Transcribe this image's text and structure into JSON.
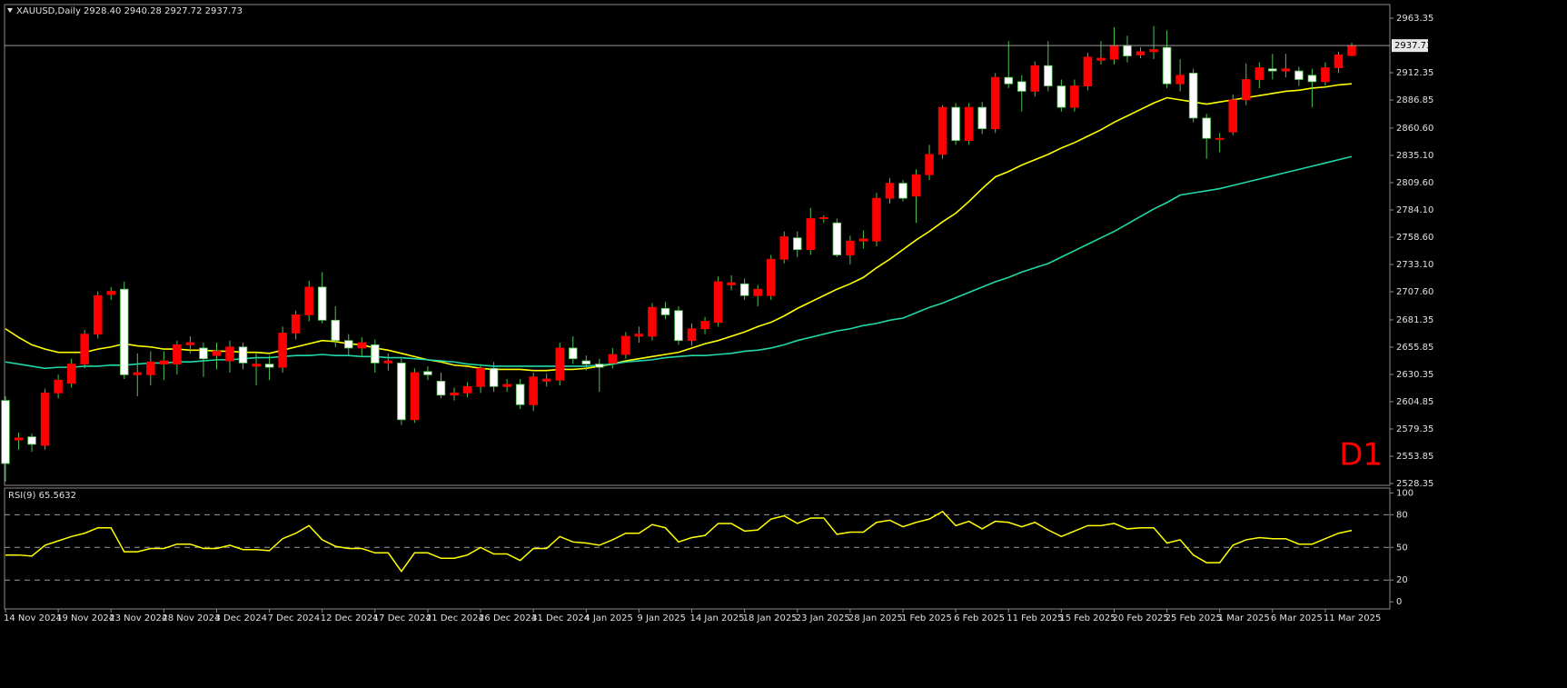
{
  "chart_data": [
    {
      "type": "candlestick",
      "title": "XAUUSD,Daily  2928.40 2940.28 2927.72 2937.73",
      "annotation": "D1",
      "categories": [
        "14 Nov 2024",
        null,
        null,
        null,
        "19 Nov 2024",
        null,
        null,
        null,
        "23 Nov 2024",
        null,
        null,
        null,
        "28 Nov 2024",
        null,
        null,
        null,
        "3 Dec 2024",
        null,
        null,
        null,
        "7 Dec 2024",
        null,
        null,
        null,
        "12 Dec 2024",
        null,
        null,
        null,
        "17 Dec 2024",
        null,
        null,
        null,
        "21 Dec 2024",
        null,
        null,
        null,
        "26 Dec 2024",
        null,
        null,
        null,
        "31 Dec 2024",
        null,
        null,
        null,
        "4 Jan 2025",
        null,
        null,
        null,
        "9 Jan 2025",
        null,
        null,
        null,
        "14 Jan 2025",
        null,
        null,
        null,
        "18 Jan 2025",
        null,
        null,
        null,
        "23 Jan 2025",
        null,
        null,
        null,
        "28 Jan 2025",
        null,
        null,
        null,
        "1 Feb 2025",
        null,
        null,
        null,
        "6 Feb 2025",
        null,
        null,
        null,
        "11 Feb 2025",
        null,
        null,
        null,
        "15 Feb 2025",
        null,
        null,
        null,
        "20 Feb 2025",
        null,
        null,
        null,
        "25 Feb 2025",
        null,
        null,
        null,
        "1 Mar 2025",
        null,
        null,
        null,
        "6 Mar 2025",
        null,
        null,
        null,
        "11 Mar 2025",
        null,
        null
      ],
      "open": [
        2606,
        2569,
        2572,
        2564,
        2613,
        2622,
        2640,
        2668,
        2705,
        2710,
        2630,
        2630,
        2640,
        2640,
        2658,
        2655,
        2648,
        2643,
        2656,
        2638,
        2640,
        2637,
        2669,
        2686,
        2712,
        2681,
        2662,
        2655,
        2658,
        2641,
        2641,
        2588,
        2633,
        2624,
        2611,
        2613,
        2619,
        2636,
        2619,
        2621,
        2602,
        2624,
        2625,
        2655,
        2643,
        2640,
        2641,
        2649,
        2666,
        2666,
        2692,
        2690,
        2662,
        2673,
        2679,
        2714,
        2715,
        2704,
        2704,
        2738,
        2758,
        2747,
        2776,
        2772,
        2742,
        2755,
        2755,
        2795,
        2809,
        2797,
        2817,
        2836,
        2880,
        2849,
        2880,
        2860,
        2908,
        2904,
        2895,
        2919,
        2900,
        2880,
        2900,
        2924,
        2925,
        2938,
        2929,
        2932,
        2936,
        2902,
        2912,
        2870,
        2850,
        2857,
        2887,
        2906,
        2916,
        2914,
        2914,
        2910,
        2904,
        2917,
        2928.4
      ],
      "high": [
        2610,
        2576,
        2575,
        2617,
        2630,
        2645,
        2672,
        2708,
        2712,
        2717,
        2650,
        2652,
        2652,
        2662,
        2666,
        2660,
        2660,
        2662,
        2660,
        2650,
        2648,
        2675,
        2690,
        2718,
        2726,
        2694,
        2668,
        2665,
        2663,
        2650,
        2645,
        2636,
        2638,
        2632,
        2618,
        2623,
        2640,
        2642,
        2626,
        2626,
        2632,
        2631,
        2660,
        2666,
        2648,
        2645,
        2655,
        2670,
        2675,
        2697,
        2698,
        2694,
        2678,
        2684,
        2722,
        2723,
        2720,
        2714,
        2742,
        2764,
        2764,
        2786,
        2779,
        2776,
        2760,
        2765,
        2800,
        2814,
        2812,
        2822,
        2845,
        2882,
        2884,
        2884,
        2885,
        2912,
        2942,
        2910,
        2923,
        2942,
        2906,
        2906,
        2931,
        2942,
        2955,
        2947,
        2936,
        2956,
        2952,
        2925,
        2916,
        2874,
        2856,
        2892,
        2921,
        2922,
        2930,
        2930,
        2918,
        2916,
        2922,
        2932,
        2940.28
      ],
      "low": [
        2530,
        2560,
        2558,
        2560,
        2608,
        2618,
        2636,
        2664,
        2700,
        2626,
        2610,
        2620,
        2625,
        2630,
        2650,
        2628,
        2635,
        2632,
        2635,
        2620,
        2625,
        2632,
        2663,
        2680,
        2678,
        2656,
        2648,
        2648,
        2632,
        2634,
        2583,
        2585,
        2625,
        2608,
        2606,
        2609,
        2613,
        2614,
        2614,
        2598,
        2596,
        2619,
        2620,
        2640,
        2634,
        2614,
        2636,
        2645,
        2660,
        2662,
        2682,
        2658,
        2657,
        2668,
        2675,
        2709,
        2700,
        2694,
        2700,
        2734,
        2740,
        2742,
        2772,
        2740,
        2733,
        2748,
        2750,
        2790,
        2792,
        2772,
        2812,
        2832,
        2845,
        2845,
        2855,
        2856,
        2898,
        2876,
        2890,
        2895,
        2876,
        2876,
        2896,
        2920,
        2920,
        2922,
        2926,
        2925,
        2898,
        2895,
        2866,
        2832,
        2838,
        2854,
        2882,
        2898,
        2906,
        2908,
        2900,
        2880,
        2900,
        2912,
        2927.72
      ],
      "close": [
        2547,
        2571,
        2565,
        2613,
        2625,
        2640,
        2668,
        2704,
        2708,
        2630,
        2632,
        2642,
        2643,
        2658,
        2660,
        2645,
        2652,
        2656,
        2641,
        2640,
        2637,
        2669,
        2686,
        2712,
        2681,
        2662,
        2655,
        2660,
        2641,
        2643,
        2588,
        2632,
        2630,
        2611,
        2613,
        2619,
        2636,
        2619,
        2621,
        2602,
        2628,
        2626,
        2655,
        2645,
        2640,
        2637,
        2649,
        2666,
        2668,
        2693,
        2686,
        2662,
        2673,
        2680,
        2717,
        2716,
        2704,
        2710,
        2738,
        2759,
        2747,
        2776,
        2777,
        2742,
        2755,
        2757,
        2795,
        2809,
        2795,
        2817,
        2836,
        2880,
        2849,
        2880,
        2860,
        2908,
        2902,
        2895,
        2919,
        2900,
        2880,
        2900,
        2927,
        2926,
        2938,
        2928,
        2932,
        2934,
        2902,
        2910,
        2870,
        2851,
        2851,
        2887,
        2906,
        2917,
        2914,
        2916,
        2906,
        2904,
        2917,
        2929,
        2937.73
      ],
      "lines": [
        {
          "color": "#ffff00",
          "values": [
            2673,
            2665,
            2658,
            2654,
            2651,
            2651,
            2651,
            2654,
            2656,
            2659,
            2657,
            2656,
            2654,
            2654,
            2653,
            2653,
            2652,
            2652,
            2651,
            2651,
            2650,
            2653,
            2656,
            2659,
            2662,
            2661,
            2659,
            2658,
            2655,
            2653,
            2650,
            2647,
            2644,
            2642,
            2639,
            2638,
            2636,
            2635,
            2635,
            2635,
            2634,
            2634,
            2635,
            2635,
            2636,
            2638,
            2640,
            2643,
            2645,
            2647,
            2649,
            2651,
            2655,
            2659,
            2662,
            2666,
            2670,
            2675,
            2679,
            2685,
            2692,
            2698,
            2704,
            2710,
            2715,
            2721,
            2730,
            2738,
            2747,
            2756,
            2764,
            2773,
            2781,
            2792,
            2804,
            2815,
            2820,
            2826,
            2831,
            2836,
            2842,
            2847,
            2853,
            2859,
            2866,
            2872,
            2878,
            2884,
            2889,
            2887,
            2885,
            2883,
            2885,
            2887,
            2889,
            2891,
            2893,
            2895,
            2896,
            2898,
            2899,
            2901,
            2902
          ]
        },
        {
          "color": "#20d8a8",
          "values": [
            2642,
            2640,
            2638,
            2636,
            2637,
            2637,
            2638,
            2638,
            2639,
            2639,
            2640,
            2641,
            2641,
            2642,
            2642,
            2643,
            2644,
            2644,
            2645,
            2646,
            2646,
            2647,
            2648,
            2648,
            2649,
            2648,
            2648,
            2647,
            2647,
            2646,
            2646,
            2645,
            2644,
            2643,
            2642,
            2640,
            2639,
            2638,
            2638,
            2638,
            2638,
            2638,
            2638,
            2638,
            2638,
            2639,
            2640,
            2642,
            2643,
            2644,
            2646,
            2647,
            2648,
            2648,
            2649,
            2650,
            2652,
            2653,
            2655,
            2658,
            2662,
            2665,
            2668,
            2671,
            2673,
            2676,
            2678,
            2681,
            2683,
            2688,
            2693,
            2697,
            2702,
            2707,
            2712,
            2717,
            2721,
            2726,
            2730,
            2734,
            2740,
            2746,
            2752,
            2758,
            2764,
            2771,
            2778,
            2785,
            2791,
            2798,
            2800,
            2802,
            2804,
            2807,
            2810,
            2813,
            2816,
            2819,
            2822,
            2825,
            2828,
            2831,
            2834
          ]
        }
      ],
      "current_price": 2937.73,
      "up_color": "#ff0000",
      "down_color": "#ffffff",
      "wick_color": "#4cc34c",
      "ylim": [
        2527.5,
        2976.1
      ],
      "yticks": [
        2963.35,
        {
          "value": 2912.35,
          "label": "2912.35"
        },
        2886.85,
        {
          "value": 2860.6,
          "label": "2860.60"
        },
        {
          "value": 2835.1,
          "label": "2835.10"
        },
        {
          "value": 2809.6,
          "label": "2809.60"
        },
        {
          "value": 2784.1,
          "label": "2784.10"
        },
        {
          "value": 2758.6,
          "label": "2758.60"
        },
        {
          "value": 2733.1,
          "label": "2733.10"
        },
        {
          "value": 2707.6,
          "label": "2707.60"
        },
        2681.35,
        2655.85,
        2630.35,
        2604.85,
        2579.35,
        2553.85,
        2528.35
      ]
    },
    {
      "type": "line",
      "title": "RSI(9) 65.5632",
      "color": "#ffff00",
      "values": [
        43,
        43,
        42,
        52,
        56,
        60,
        63,
        68,
        68,
        46,
        46,
        49,
        49,
        53,
        53,
        49,
        49,
        52,
        48,
        48,
        47,
        58,
        63,
        70,
        57,
        51,
        49,
        49,
        45,
        45,
        28,
        45,
        45,
        40,
        40,
        43,
        50,
        44,
        44,
        38,
        49,
        49,
        60,
        55,
        54,
        52,
        57,
        63,
        63,
        71,
        68,
        55,
        59,
        61,
        72,
        72,
        65,
        66,
        76,
        79,
        72,
        77,
        77,
        62,
        64,
        64,
        73,
        75,
        69,
        73,
        76,
        83,
        70,
        74,
        67,
        74,
        73,
        69,
        73,
        66,
        60,
        65,
        70,
        70,
        72,
        67,
        68,
        68,
        54,
        57,
        43,
        36,
        36,
        52,
        57,
        59,
        58,
        58,
        53,
        53,
        58,
        63,
        65.5632
      ],
      "levels": [
        80,
        50,
        20
      ],
      "ylim": [
        -6.5,
        104.5
      ],
      "yticks": [
        100,
        80,
        50,
        20,
        0
      ]
    }
  ]
}
